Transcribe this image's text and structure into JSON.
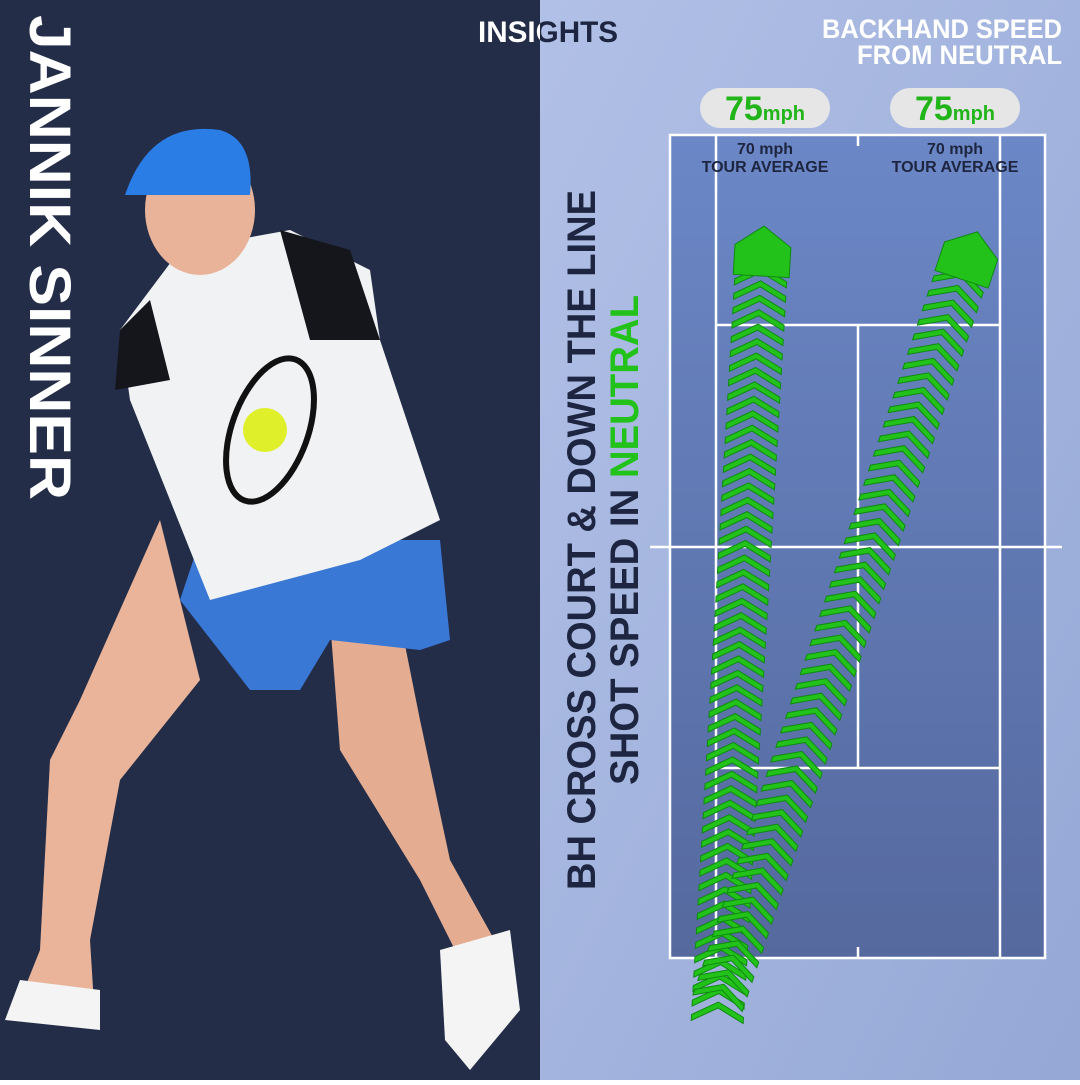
{
  "header": {
    "player": "JANNIK SINNER",
    "brand": "INSIGHTS",
    "topic_line1": "BACKHAND SPEED",
    "topic_line2": "FROM NEUTRAL"
  },
  "caption": {
    "line1": "BH CROSS COURT & DOWN THE LINE",
    "line2": "SHOT SPEED IN ",
    "highlight": "NEUTRAL"
  },
  "badges": [
    {
      "speed": 75,
      "unit": "mph",
      "average": "70 mph",
      "average_label": "TOUR AVERAGE"
    },
    {
      "speed": 75,
      "unit": "mph",
      "average": "70 mph",
      "average_label": "TOUR AVERAGE"
    }
  ]
}
